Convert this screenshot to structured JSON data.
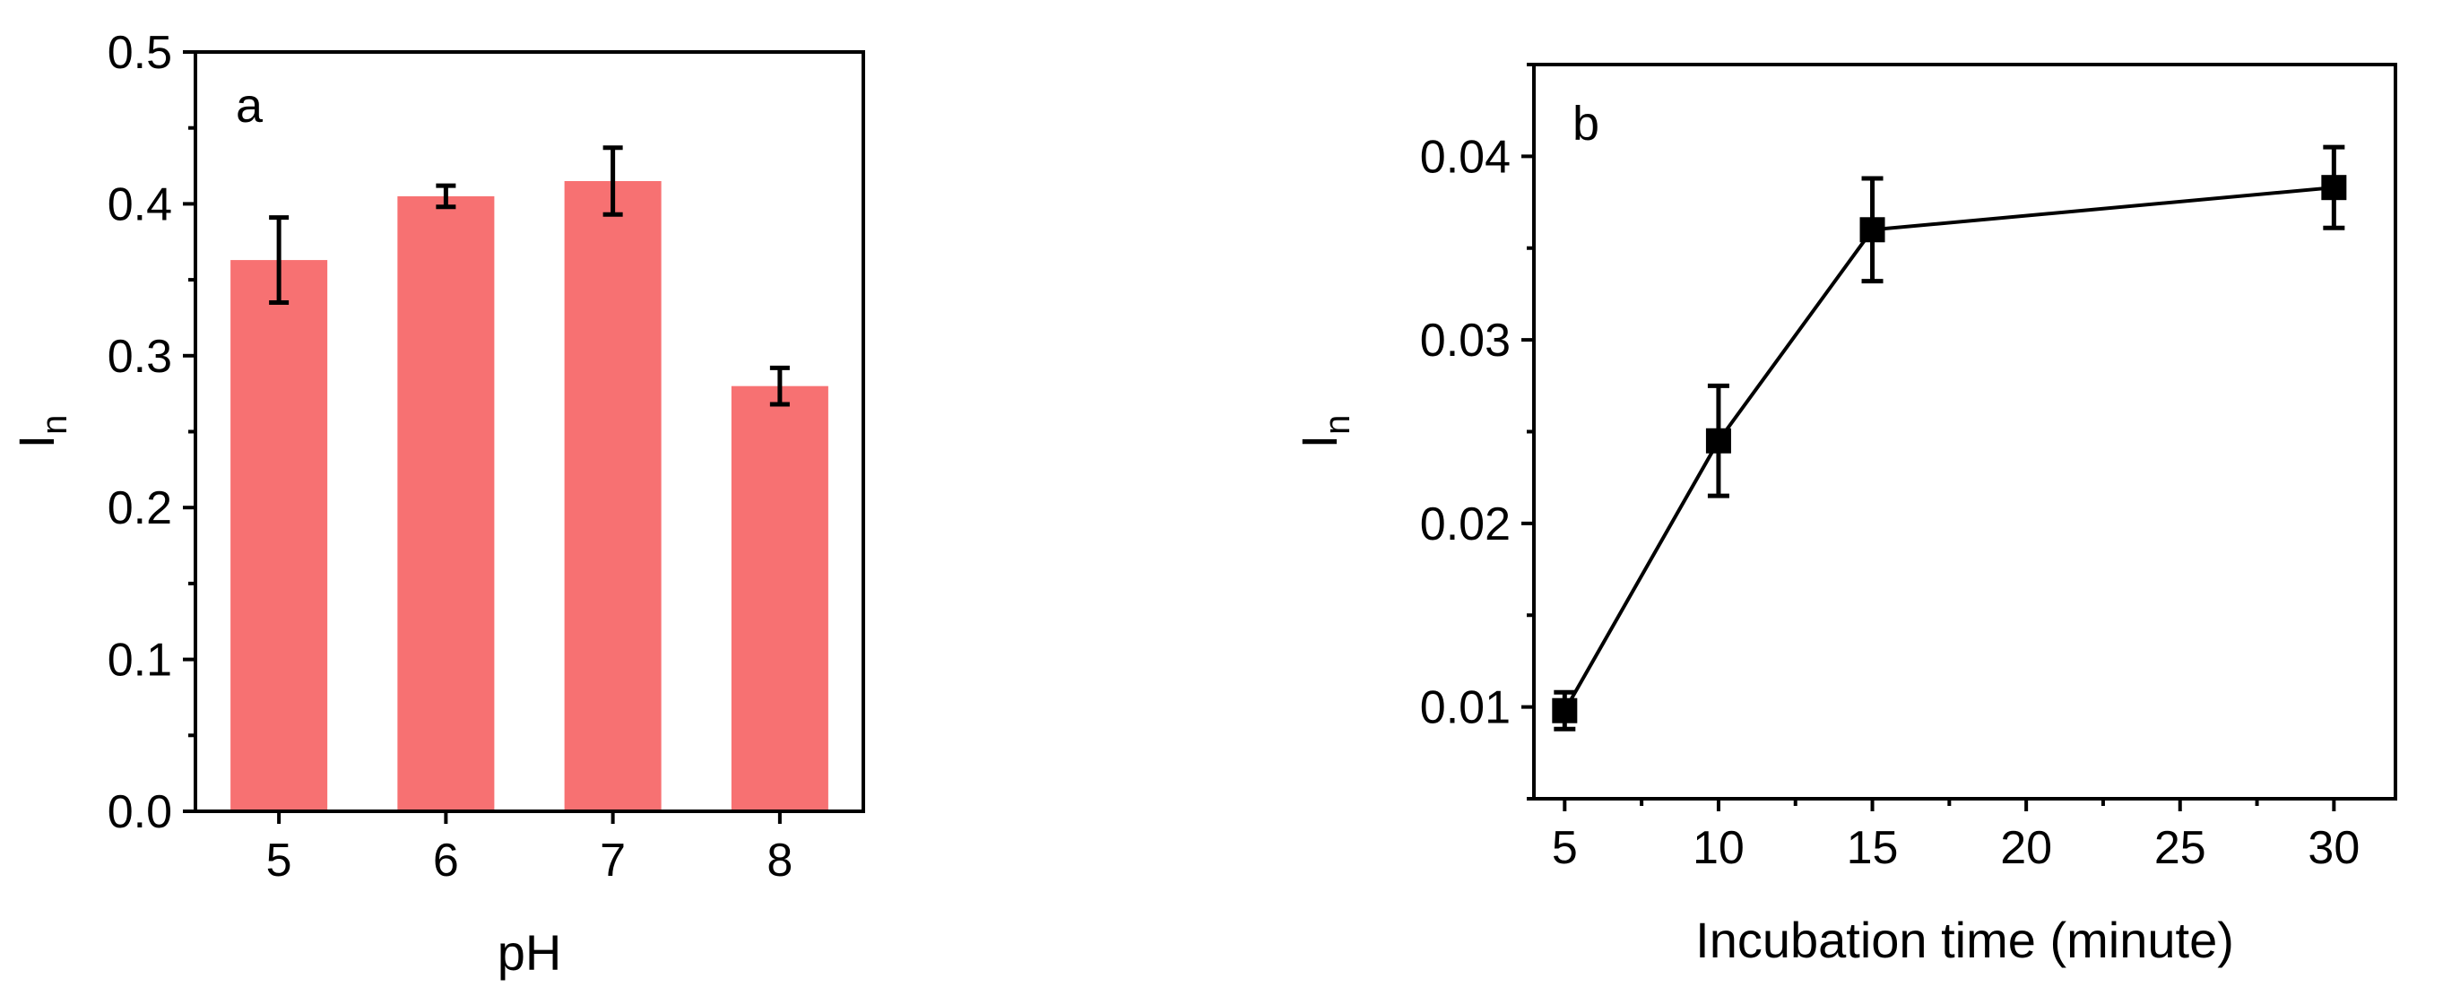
{
  "chart_data": [
    {
      "type": "bar",
      "panel_label": "a",
      "title": "",
      "xlabel": "pH",
      "ylabel": "I",
      "ylabel_subscript": "n",
      "categories": [
        "5",
        "6",
        "7",
        "8"
      ],
      "values": [
        0.363,
        0.405,
        0.415,
        0.28
      ],
      "errors": [
        0.028,
        0.007,
        0.022,
        0.012
      ],
      "bar_color": "#F77172",
      "ylim": [
        0.0,
        0.5
      ],
      "yticks": [
        0.0,
        0.1,
        0.2,
        0.3,
        0.4,
        0.5
      ],
      "ytick_labels": [
        "0.0",
        "0.1",
        "0.2",
        "0.3",
        "0.4",
        "0.5"
      ],
      "grid": false,
      "legend": "none"
    },
    {
      "type": "line",
      "panel_label": "b",
      "title": "",
      "xlabel": "Incubation time (minute)",
      "ylabel": "I",
      "ylabel_subscript": "n",
      "x": [
        5,
        10,
        15,
        30
      ],
      "y": [
        0.0098,
        0.0245,
        0.036,
        0.0383
      ],
      "errors": [
        0.001,
        0.003,
        0.0028,
        0.0022
      ],
      "marker": "square",
      "line_color": "#000000",
      "xlim": [
        4,
        32
      ],
      "ylim": [
        0.005,
        0.045
      ],
      "xticks": [
        5,
        10,
        15,
        20,
        25,
        30
      ],
      "xtick_labels": [
        "5",
        "10",
        "15",
        "20",
        "25",
        "30"
      ],
      "yticks": [
        0.01,
        0.02,
        0.03,
        0.04
      ],
      "ytick_labels": [
        "0.01",
        "0.02",
        "0.03",
        "0.04"
      ],
      "grid": false,
      "legend": "none"
    }
  ]
}
